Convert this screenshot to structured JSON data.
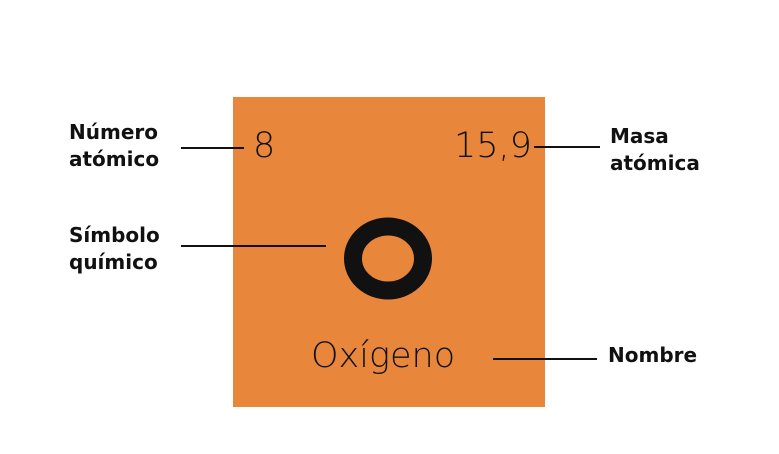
{
  "tile": {
    "atomic_number": "8",
    "atomic_mass": "15,9",
    "symbol": "O",
    "name": "Oxígeno",
    "color": "#e8873c"
  },
  "labels": {
    "atomic_number": [
      "Número",
      "atómico"
    ],
    "symbol": [
      "Símbolo",
      "químico"
    ],
    "atomic_mass": [
      "Masa",
      "atómica"
    ],
    "name": "Nombre"
  }
}
